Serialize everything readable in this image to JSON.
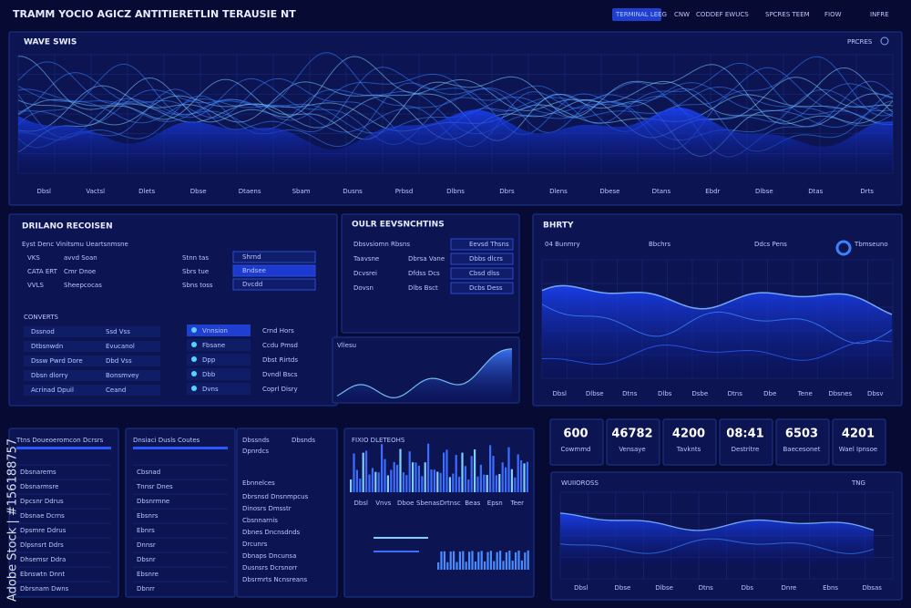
{
  "header": {
    "title": "TRAMM YOCIO AGICZ ANTITIERETLIN TERAUSIE NT",
    "tabs": [
      "TERMINAL LEEG",
      "CNW",
      "CODDEF EWUCS",
      "SPCRES TEEM",
      "FIOW",
      "INFRE"
    ]
  },
  "wave_panel": {
    "label": "WAVE SWIS",
    "controls": "PRCRES",
    "x_labels": [
      "Dbsl",
      "Vactsl",
      "Dlets",
      "Dbse",
      "Dtaens",
      "Sbam",
      "Dusns",
      "Prbsd",
      "Dlbns",
      "Dbrs",
      "Dlens",
      "Dbese",
      "Dtans",
      "Ebdr",
      "Dlbse",
      "Dtas",
      "Drts"
    ]
  },
  "left_panel": {
    "title": "DRILANO RECOISEN",
    "subtitle": "Eyst Denc Vinitsmu Ueartsnmsne",
    "rows": [
      [
        "VKS",
        "avvd Soan",
        "Stnn tas"
      ],
      [
        "CATA ERT",
        "Cmr Dnoe",
        "Sbrs tue"
      ],
      [
        "VVLS",
        "Sheepcocas",
        "Sbns toss"
      ]
    ],
    "buttons": [
      "Shrnd",
      "Bndsee",
      "Dvcdd"
    ],
    "section": "CONVERTS",
    "list": [
      [
        "Dssnod",
        "Ssd Vss"
      ],
      [
        "Dtbsnwdn",
        "Evucanol"
      ],
      [
        "Dssw Pwrd Dore",
        "Dbd Vss"
      ],
      [
        "Dbsn dlorry",
        "Bonsmvey"
      ],
      [
        "Acrinad Dpuil",
        "Ceand"
      ]
    ],
    "menu": [
      "Vnnsion",
      "Fbsane",
      "Dpp",
      "Dbb",
      "Dvns"
    ],
    "menu_right": [
      "Crnd Hors",
      "Ccdu Pmsd",
      "Dbst Rirtds",
      "Dvndl Bscs",
      "Coprl Disry"
    ]
  },
  "events_panel": {
    "title": "OULR EEVSNCHTINS",
    "rows": [
      [
        "Dbsvsiomn Rbsns",
        "Eevsd Thsns"
      ],
      [
        "Taavsne",
        "Dbrsa Vane",
        "Dbbs dlcrs"
      ],
      [
        "Dcvsrei",
        "Dfdss Dcs",
        "Cbsd dlss"
      ],
      [
        "Dovsn",
        "Dlbs Bsct",
        "Dcbs Dess"
      ]
    ],
    "chart_label": "Vllesu"
  },
  "right_panel": {
    "title": "BHRTY",
    "stats": [
      "04 Bunmry",
      "Bbchrs",
      "Ddcs Pens",
      "Tbmseuno"
    ],
    "x_labels": [
      "Dbsl",
      "Dlbse",
      "Dtns",
      "Dlbs",
      "Dsbe",
      "Dtns",
      "Dbe",
      "Tene",
      "Dbsnes",
      "Dbsv"
    ]
  },
  "mini_panels": [
    {
      "title": "Ttns Doueoeromcon Dcrsrs",
      "rows": [
        "Dbsnarems",
        "Dbsnarmsre",
        "Dpcsnr Ddrus",
        "Dbsnae Dcrns",
        "Dpsmre Ddrus",
        "Dlpsnsrt Ddrs",
        "Dhsemsr Ddra",
        "Ebnswtn Dnnt",
        "Dbrsnam Dwns"
      ]
    },
    {
      "title": "Dnsiaci Dusls Coutes",
      "rows": [
        "Cbsnad",
        "Tnnsr Dnes",
        "Dbsnrmne",
        "Ebsnrs",
        "Ebnrs",
        "Dnnsr",
        "Dbsnr",
        "Ebsnre",
        "Dbnrr"
      ]
    }
  ],
  "text_panel": {
    "heads": [
      "Dbssnds",
      "Dbsnds",
      "Dpnrdcs"
    ],
    "section": "Ebnnelces",
    "lines": [
      "Dbrsnsd Dnsnmpcus",
      "Dinosrs Dmsstr",
      "Cbsnnarnis",
      "Dbnes Dncnsdnds",
      "Drcunrs",
      "Dbnaps Dncunsa",
      "Dusnsrs Dcrsnorr",
      "Dbsrmrts Ncnsreans"
    ]
  },
  "bar_panel": {
    "title": "FIXIO DLETEOHS",
    "x_labels": [
      "Dbsl",
      "Vnvs",
      "Dboe",
      "Sbenas",
      "Drtnsc",
      "Beas",
      "Epsn",
      "Teer"
    ]
  },
  "stats": [
    {
      "value": "600",
      "label": "Cowmmd"
    },
    {
      "value": "46782",
      "label": "Vensaye"
    },
    {
      "value": "4200",
      "label": "Tavknts"
    },
    {
      "value": "08:41",
      "label": "Destritre"
    },
    {
      "value": "6503",
      "label": "Baecesonet"
    },
    {
      "value": "4201",
      "label": "Wael Ipnsoe"
    }
  ],
  "trend_panel": {
    "title": "WUIIOROSS",
    "controls": "TNG",
    "x_labels": [
      "Dbsl",
      "Dbse",
      "Dlbse",
      "Dtns",
      "Dbs",
      "Dnre",
      "Ebns",
      "Dbsas"
    ]
  },
  "watermark": "Adobe Stock | #156188757"
}
